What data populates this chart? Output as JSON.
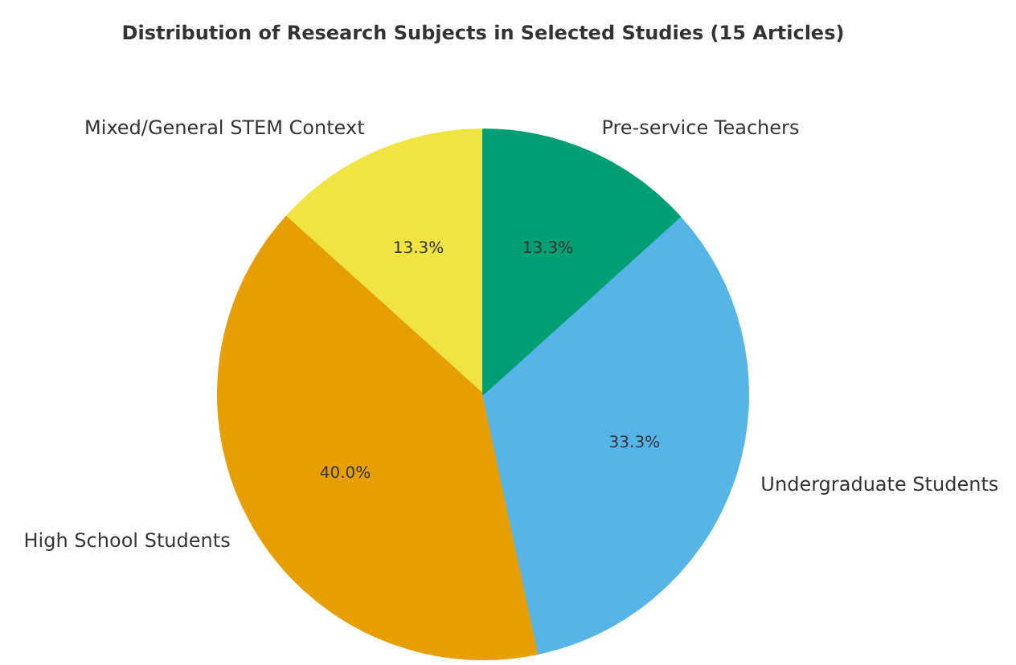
{
  "chart_data": {
    "type": "pie",
    "title": "Distribution of Research Subjects in Selected Studies (15 Articles)",
    "categories": [
      "Mixed/General STEM Context",
      "High School Students",
      "Undergraduate Students",
      "Pre-service Teachers"
    ],
    "values": [
      13.3,
      40.0,
      33.3,
      13.3
    ],
    "colors": [
      "#f0e442",
      "#e69f00",
      "#56b4e9",
      "#009e73"
    ],
    "value_labels": [
      "13.3%",
      "40.0%",
      "33.3%",
      "13.3%"
    ]
  }
}
